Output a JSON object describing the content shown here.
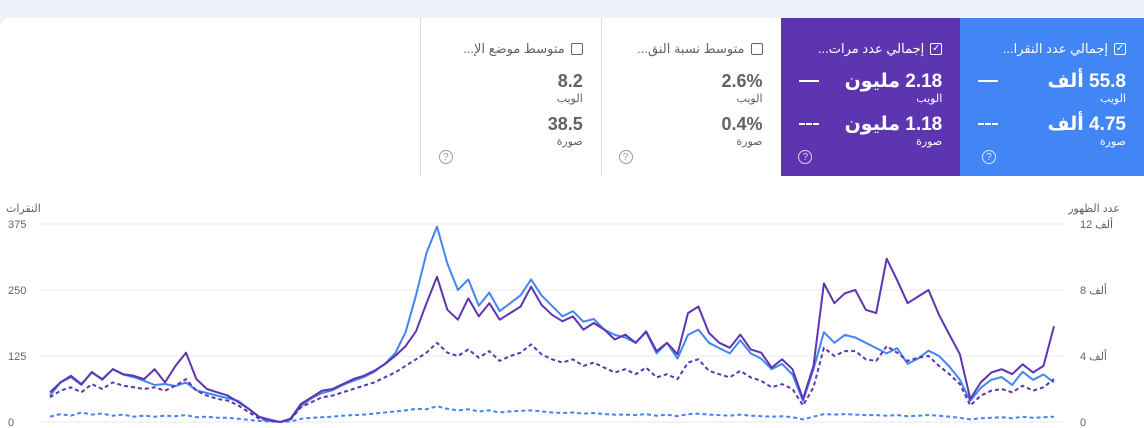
{
  "cards": [
    {
      "id": "clicks",
      "title": "إجمالي عدد النقرا...",
      "checked": true,
      "web_value": "55.8 ألف",
      "web_label": "الويب",
      "image_value": "4.75 ألف",
      "image_label": "صورة"
    },
    {
      "id": "impressions",
      "title": "إجمالي عدد مرات...",
      "checked": true,
      "web_value": "2.18 مليون",
      "web_label": "الويب",
      "image_value": "1.18 مليون",
      "image_label": "صورة"
    },
    {
      "id": "ctr",
      "title": "متوسط نسبة النق...",
      "checked": false,
      "web_value": "2.6%",
      "web_label": "الويب",
      "image_value": "0.4%",
      "image_label": "صورة"
    },
    {
      "id": "position",
      "title": "متوسط موضع الإ...",
      "checked": false,
      "web_value": "8.2",
      "web_label": "الويب",
      "image_value": "38.5",
      "image_label": "صورة"
    }
  ],
  "icons": {
    "checkbox_checked": "✓",
    "help": "?"
  },
  "colors": {
    "clicks": "#4285f4",
    "impressions": "#5e35b1",
    "grid": "#e8eaed",
    "text": "#5f6368"
  },
  "chart_data": {
    "type": "line",
    "left_axis_title": "النقرات",
    "right_axis_title": "عدد الظهور",
    "left_ticks": [
      "375",
      "250",
      "125",
      "0"
    ],
    "right_ticks": [
      "12 ألف",
      "8 ألف",
      "4 ألف",
      "0"
    ],
    "left_ylim": [
      0,
      375
    ],
    "right_ylim": [
      0,
      12000
    ],
    "grid": true,
    "series": [
      {
        "key": "clicks_web",
        "axis": "left",
        "style": "solid",
        "color": "#4285f4",
        "values": [
          50,
          75,
          85,
          70,
          95,
          80,
          100,
          90,
          85,
          78,
          70,
          72,
          68,
          75,
          60,
          55,
          50,
          45,
          40,
          25,
          10,
          5,
          0,
          5,
          30,
          45,
          55,
          60,
          70,
          78,
          85,
          95,
          110,
          130,
          170,
          240,
          320,
          370,
          300,
          250,
          270,
          220,
          245,
          210,
          225,
          240,
          270,
          240,
          220,
          200,
          210,
          190,
          195,
          175,
          165,
          160,
          150,
          170,
          130,
          150,
          120,
          165,
          175,
          150,
          140,
          130,
          155,
          130,
          120,
          100,
          110,
          90,
          40,
          100,
          170,
          150,
          165,
          160,
          150,
          140,
          130,
          140,
          110,
          120,
          135,
          125,
          105,
          80,
          40,
          65,
          80,
          85,
          70,
          95,
          80,
          90,
          75
        ]
      },
      {
        "key": "clicks_image",
        "axis": "left",
        "style": "dashed",
        "color": "#4285f4",
        "values": [
          10,
          15,
          12,
          18,
          14,
          16,
          12,
          14,
          10,
          12,
          10,
          12,
          11,
          13,
          9,
          10,
          8,
          8,
          6,
          4,
          2,
          1,
          0,
          1,
          6,
          8,
          9,
          10,
          12,
          13,
          14,
          16,
          18,
          20,
          22,
          25,
          24,
          30,
          25,
          22,
          24,
          20,
          22,
          18,
          20,
          21,
          22,
          20,
          18,
          17,
          18,
          16,
          17,
          15,
          14,
          14,
          13,
          15,
          12,
          14,
          11,
          15,
          16,
          14,
          13,
          12,
          14,
          12,
          11,
          10,
          11,
          9,
          5,
          10,
          15,
          14,
          15,
          14,
          13,
          13,
          12,
          13,
          11,
          12,
          13,
          12,
          10,
          8,
          5,
          7,
          8,
          9,
          7,
          10,
          8,
          9,
          10
        ]
      },
      {
        "key": "impressions_web",
        "axis": "right",
        "style": "solid",
        "color": "#5e35b1",
        "values": [
          1800,
          2400,
          2800,
          2300,
          3000,
          2600,
          3200,
          2900,
          2800,
          2600,
          3200,
          2400,
          3400,
          4200,
          2600,
          2000,
          1800,
          1600,
          1200,
          800,
          300,
          100,
          0,
          200,
          1100,
          1500,
          1900,
          2000,
          2300,
          2600,
          2800,
          3100,
          3500,
          4000,
          4600,
          5500,
          7200,
          8800,
          6800,
          6200,
          7500,
          6400,
          7200,
          6200,
          6600,
          7000,
          8200,
          7100,
          6500,
          6100,
          6400,
          5600,
          6000,
          5600,
          5000,
          5300,
          4800,
          5500,
          4300,
          4800,
          4100,
          6600,
          7000,
          5400,
          4800,
          4500,
          5300,
          4400,
          4200,
          3300,
          3800,
          3200,
          1400,
          3400,
          8400,
          7200,
          7800,
          8000,
          6800,
          6600,
          9900,
          8600,
          7200,
          7600,
          8000,
          6500,
          5300,
          4100,
          1400,
          2400,
          3000,
          3200,
          2900,
          3500,
          3000,
          3400,
          5800
        ]
      },
      {
        "key": "impressions_image",
        "axis": "right",
        "style": "dashed",
        "color": "#5e35b1",
        "values": [
          1500,
          1900,
          2100,
          1800,
          2300,
          2000,
          2400,
          2200,
          2100,
          2000,
          2100,
          1900,
          2200,
          2600,
          1900,
          1600,
          1400,
          1300,
          1000,
          600,
          200,
          80,
          0,
          150,
          900,
          1200,
          1500,
          1600,
          1800,
          2000,
          2200,
          2400,
          2700,
          3000,
          3400,
          3800,
          4200,
          4800,
          4200,
          4000,
          4400,
          3900,
          4300,
          3700,
          4000,
          4200,
          4700,
          4100,
          3800,
          3600,
          3800,
          3400,
          3600,
          3300,
          3000,
          3200,
          2900,
          3300,
          2700,
          2900,
          2600,
          3600,
          3800,
          3100,
          2900,
          2700,
          3100,
          2700,
          2500,
          2100,
          2300,
          2000,
          1000,
          2100,
          4500,
          4000,
          4300,
          4300,
          3800,
          3700,
          4600,
          4200,
          3700,
          3900,
          4000,
          3400,
          2900,
          2300,
          1000,
          1600,
          1900,
          2000,
          1800,
          2200,
          1900,
          2100,
          2600
        ]
      }
    ]
  }
}
